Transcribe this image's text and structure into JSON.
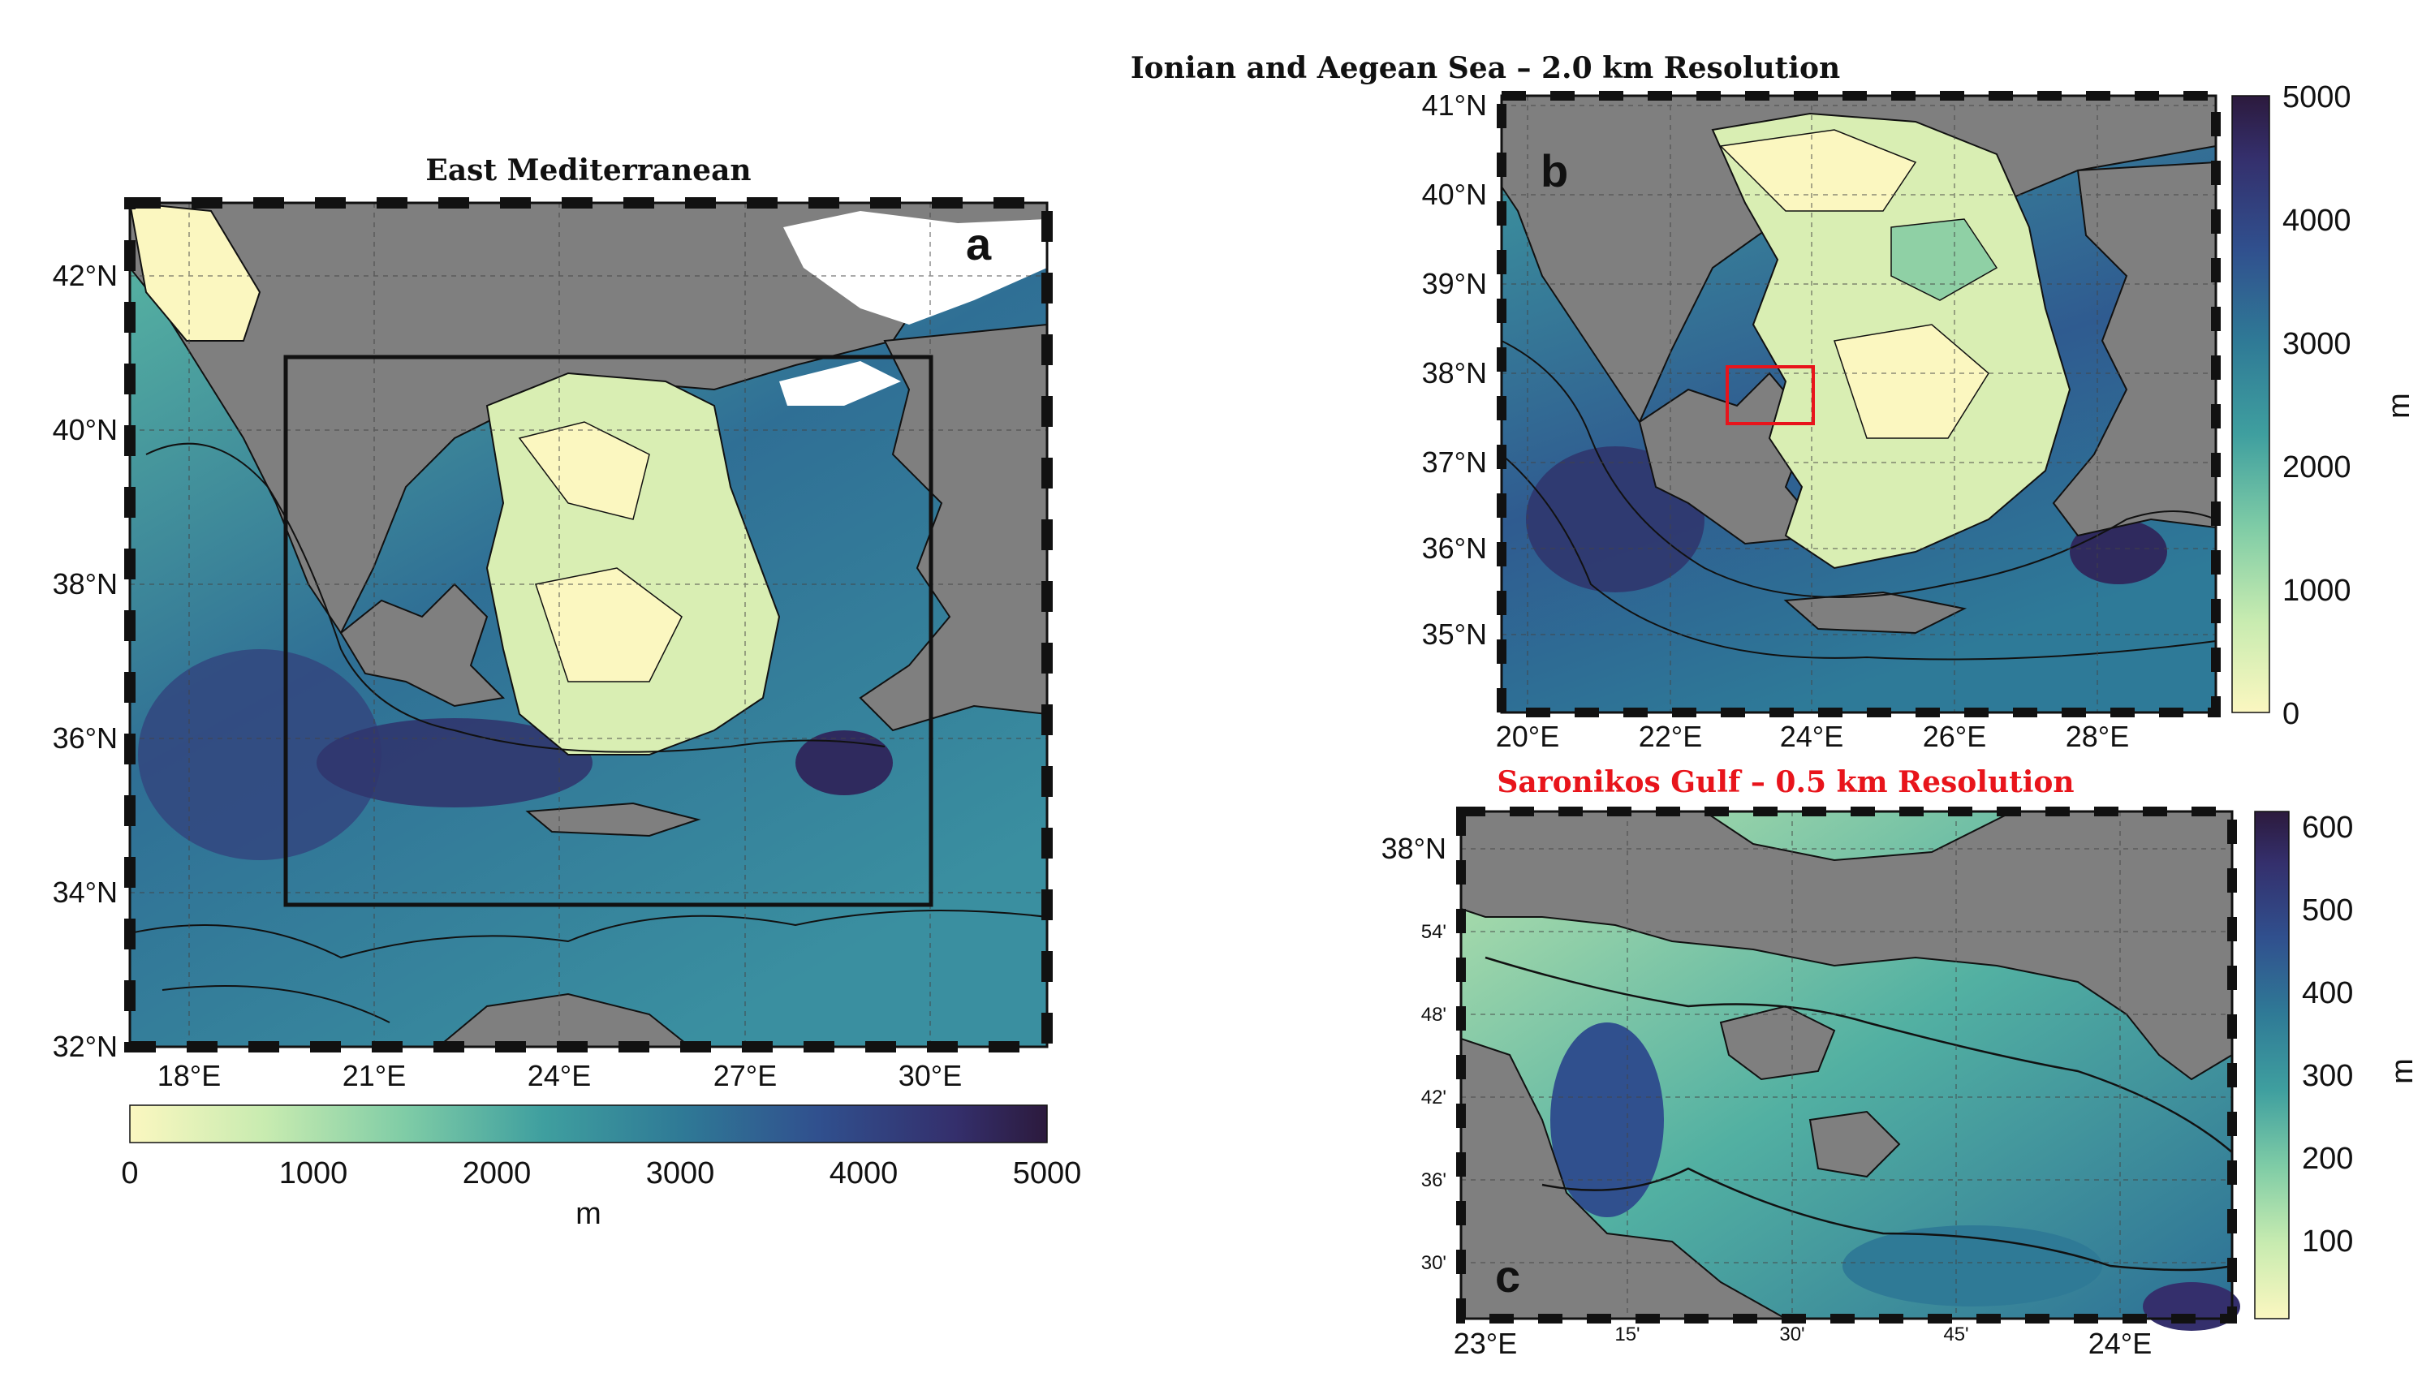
{
  "panels": [
    {
      "id": "a",
      "title": "East Mediterranean",
      "letter": "a",
      "lat_ticks": [
        "42°N",
        "40°N",
        "38°N",
        "36°N",
        "34°N",
        "32°N"
      ],
      "lon_ticks": [
        "18°E",
        "21°E",
        "24°E",
        "27°E",
        "30°E"
      ],
      "colorbar": {
        "orientation": "horizontal",
        "ticks": [
          "0",
          "1000",
          "2000",
          "3000",
          "4000",
          "5000"
        ],
        "unit": "m",
        "range": [
          0,
          5000
        ]
      }
    },
    {
      "id": "b",
      "title": "Ionian and Aegean Sea – 2.0 km Resolution",
      "letter": "b",
      "lat_ticks": [
        "41°N",
        "40°N",
        "39°N",
        "38°N",
        "37°N",
        "36°N",
        "35°N"
      ],
      "lon_ticks": [
        "20°E",
        "22°E",
        "24°E",
        "26°E",
        "28°E"
      ],
      "colorbar": {
        "orientation": "vertical",
        "ticks": [
          "5000",
          "4000",
          "3000",
          "2000",
          "1000",
          "0"
        ],
        "unit": "m",
        "range": [
          0,
          5000
        ]
      }
    },
    {
      "id": "c",
      "title": "Saronikos Gulf – 0.5 km Resolution",
      "title_color": "#e8141b",
      "letter": "c",
      "lat_ticks": [
        "38°N",
        "54'",
        "48'",
        "42'",
        "36'",
        "30'"
      ],
      "lon_ticks": [
        "23°E",
        "15'",
        "30'",
        "45'",
        "24°E"
      ],
      "colorbar": {
        "orientation": "vertical",
        "ticks": [
          "600",
          "500",
          "400",
          "300",
          "200",
          "100"
        ],
        "unit": "m",
        "range": [
          0,
          620
        ]
      }
    }
  ],
  "colors": {
    "land": "#7f7f7f",
    "shallow": "#fbf7c0",
    "mid": "#3f9f9f",
    "deep": "#2c1a3d",
    "highlight_box": "#e8141b"
  }
}
